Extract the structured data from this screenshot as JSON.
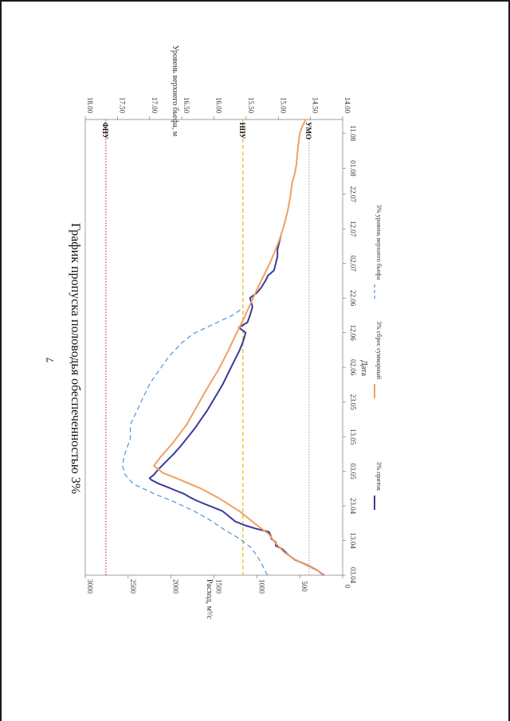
{
  "page": {
    "number": "7"
  },
  "chart_data": {
    "type": "line",
    "title": "График пропуска половодья обеспеченностью 3%",
    "xlabel": "Дата",
    "ylabel_left": "Расход, м³/с",
    "ylabel_right": "Уровень верхнего бьефа, м",
    "x_start": 0,
    "x_end": 221,
    "x_ticks": [
      {
        "pos": 0,
        "label": "03.04"
      },
      {
        "pos": 20,
        "label": "13.04"
      },
      {
        "pos": 40,
        "label": "23.04"
      },
      {
        "pos": 60,
        "label": "03.05"
      },
      {
        "pos": 80,
        "label": "13.05"
      },
      {
        "pos": 100,
        "label": "23.05"
      },
      {
        "pos": 120,
        "label": "02.06"
      },
      {
        "pos": 140,
        "label": "12.06"
      },
      {
        "pos": 160,
        "label": "22.06"
      },
      {
        "pos": 180,
        "label": "02.07"
      },
      {
        "pos": 200,
        "label": "12.07"
      },
      {
        "pos": 220,
        "label": "22.07"
      }
    ],
    "x_ticks_extra": [
      {
        "pos_frac": 0.893,
        "label": "01.08"
      },
      {
        "pos_frac": 0.97,
        "label": "11.08"
      }
    ],
    "ylim_left": [
      0,
      3000
    ],
    "yticks_left": [
      0,
      500,
      1000,
      1500,
      2000,
      2500,
      3000
    ],
    "ylim_right": [
      14.0,
      18.0
    ],
    "yticks_right": [
      "14.00",
      "14.50",
      "15.00",
      "15.50",
      "16.00",
      "16.50",
      "17.00",
      "17.50",
      "18.00"
    ],
    "series": [
      {
        "name": "3% приток",
        "color": "#3a3a9a",
        "axis": "left",
        "points": [
          [
            0,
            220
          ],
          [
            3,
            300
          ],
          [
            6,
            420
          ],
          [
            9,
            560
          ],
          [
            12,
            640
          ],
          [
            15,
            700
          ],
          [
            17,
            780
          ],
          [
            19,
            780
          ],
          [
            21,
            830
          ],
          [
            23,
            840
          ],
          [
            25,
            860
          ],
          [
            27,
            1020
          ],
          [
            29,
            1150
          ],
          [
            31,
            1250
          ],
          [
            33,
            1300
          ],
          [
            35,
            1350
          ],
          [
            37,
            1400
          ],
          [
            39,
            1500
          ],
          [
            41,
            1600
          ],
          [
            43,
            1700
          ],
          [
            45,
            1780
          ],
          [
            47,
            1850
          ],
          [
            49,
            1950
          ],
          [
            51,
            2050
          ],
          [
            53,
            2150
          ],
          [
            55,
            2230
          ],
          [
            56,
            2250
          ],
          [
            58,
            2200
          ],
          [
            61,
            2150
          ],
          [
            65,
            2070
          ],
          [
            70,
            1970
          ],
          [
            75,
            1880
          ],
          [
            80,
            1800
          ],
          [
            85,
            1720
          ],
          [
            90,
            1650
          ],
          [
            95,
            1580
          ],
          [
            100,
            1520
          ],
          [
            105,
            1460
          ],
          [
            110,
            1400
          ],
          [
            115,
            1350
          ],
          [
            120,
            1300
          ],
          [
            125,
            1250
          ],
          [
            130,
            1200
          ],
          [
            135,
            1160
          ],
          [
            140,
            1130
          ],
          [
            143,
            1210
          ],
          [
            146,
            1110
          ],
          [
            150,
            1080
          ],
          [
            155,
            1050
          ],
          [
            160,
            1080
          ],
          [
            163,
            1000
          ],
          [
            166,
            950
          ],
          [
            170,
            900
          ],
          [
            173,
            870
          ],
          [
            176,
            800
          ],
          [
            180,
            780
          ],
          [
            184,
            760
          ],
          [
            188,
            760
          ],
          [
            192,
            740
          ],
          [
            196,
            720
          ]
        ]
      },
      {
        "name": "3% сброс суммарный",
        "color": "#f0a060",
        "axis": "left",
        "points_frac": [
          [
            0,
            230
          ],
          [
            0.01,
            290
          ],
          [
            0.02,
            400
          ],
          [
            0.035,
            560
          ],
          [
            0.05,
            680
          ],
          [
            0.07,
            780
          ],
          [
            0.09,
            860
          ],
          [
            0.11,
            1000
          ],
          [
            0.14,
            1200
          ],
          [
            0.17,
            1450
          ],
          [
            0.19,
            1650
          ],
          [
            0.21,
            1900
          ],
          [
            0.225,
            2100
          ],
          [
            0.24,
            2200
          ],
          [
            0.26,
            2120
          ],
          [
            0.29,
            1980
          ],
          [
            0.33,
            1820
          ],
          [
            0.37,
            1700
          ],
          [
            0.41,
            1580
          ],
          [
            0.45,
            1450
          ],
          [
            0.49,
            1340
          ],
          [
            0.53,
            1240
          ],
          [
            0.56,
            1160
          ],
          [
            0.585,
            1100
          ],
          [
            0.61,
            1040
          ],
          [
            0.63,
            990
          ],
          [
            0.65,
            940
          ],
          [
            0.68,
            860
          ],
          [
            0.71,
            790
          ],
          [
            0.74,
            730
          ],
          [
            0.77,
            680
          ],
          [
            0.8,
            640
          ],
          [
            0.83,
            610
          ],
          [
            0.86,
            590
          ],
          [
            0.88,
            560
          ],
          [
            0.9,
            540
          ],
          [
            0.92,
            530
          ],
          [
            0.94,
            520
          ],
          [
            0.955,
            510
          ],
          [
            0.97,
            500
          ],
          [
            0.985,
            470
          ],
          [
            1.0,
            430
          ]
        ]
      },
      {
        "name": "3% уровень верхнего бьефа",
        "color": "#5a9ae0",
        "axis": "right",
        "dashed": true,
        "points_frac": [
          [
            0,
            15.17
          ],
          [
            0.02,
            15.24
          ],
          [
            0.04,
            15.32
          ],
          [
            0.06,
            15.42
          ],
          [
            0.08,
            15.6
          ],
          [
            0.1,
            15.84
          ],
          [
            0.12,
            16.05
          ],
          [
            0.14,
            16.3
          ],
          [
            0.16,
            16.6
          ],
          [
            0.18,
            16.95
          ],
          [
            0.2,
            17.25
          ],
          [
            0.22,
            17.38
          ],
          [
            0.24,
            17.42
          ],
          [
            0.26,
            17.4
          ],
          [
            0.28,
            17.35
          ],
          [
            0.3,
            17.3
          ],
          [
            0.33,
            17.3
          ],
          [
            0.36,
            17.2
          ],
          [
            0.39,
            17.1
          ],
          [
            0.42,
            17.0
          ],
          [
            0.45,
            16.85
          ],
          [
            0.48,
            16.7
          ],
          [
            0.51,
            16.5
          ],
          [
            0.53,
            16.32
          ],
          [
            0.55,
            16.02
          ],
          [
            0.57,
            15.72
          ],
          [
            0.585,
            15.56
          ]
        ]
      }
    ],
    "reference_lines": [
      {
        "label": "ФПУ",
        "value": 17.68,
        "color": "#e04040",
        "style": "dotted"
      },
      {
        "label": "НПУ",
        "value": 15.55,
        "color": "#e0c020",
        "style": "dashed"
      },
      {
        "label": "УМО",
        "value": 14.52,
        "color": "#b0b0b0",
        "style": "dotted"
      }
    ],
    "legend": {
      "placement": "bottom",
      "items": [
        {
          "label": "3% приток",
          "color": "#3a3a9a",
          "style": "solid"
        },
        {
          "label": "3% сброс суммарный",
          "color": "#f0a060",
          "style": "solid"
        },
        {
          "label": "3% уровень верхнего бьефа",
          "color": "#5a9ae0",
          "style": "dashed"
        }
      ]
    }
  }
}
